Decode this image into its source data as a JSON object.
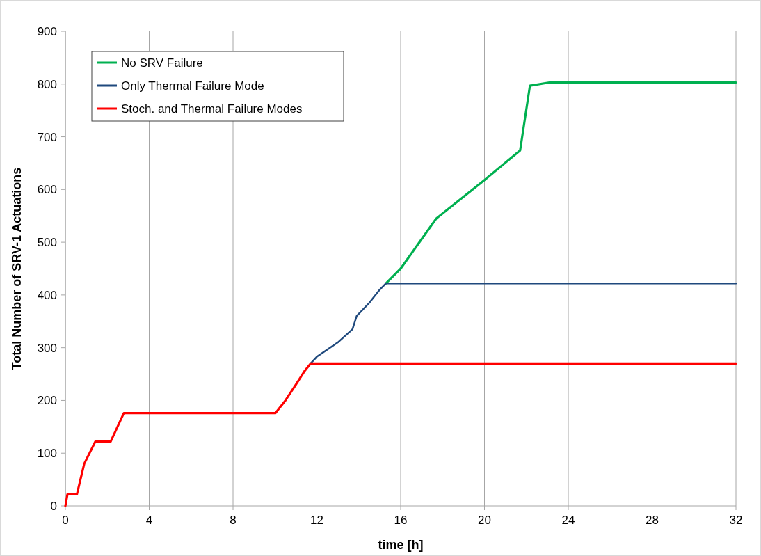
{
  "chart_data": {
    "type": "line",
    "xlabel": "time [h]",
    "ylabel": "Total Number of SRV-1 Actuations",
    "xlim": [
      0,
      32
    ],
    "ylim": [
      0,
      900
    ],
    "xticks": [
      0,
      4,
      8,
      12,
      16,
      20,
      24,
      28,
      32
    ],
    "yticks": [
      0,
      100,
      200,
      300,
      400,
      500,
      600,
      700,
      800,
      900
    ],
    "grid": "x",
    "legend": "top left",
    "line_style": "solid",
    "series": [
      {
        "name": "No SRV Failure",
        "color": "#00b050",
        "x": [
          15.3,
          16,
          17.7,
          20,
          21.7,
          22.17,
          23.1,
          32
        ],
        "values": [
          422,
          450,
          545,
          618,
          674,
          797,
          803,
          803
        ]
      },
      {
        "name": "Only Thermal Failure Mode",
        "color": "#1f497d",
        "x": [
          11.7,
          12,
          13,
          13.7,
          13.9,
          14.5,
          15,
          15.3,
          32
        ],
        "values": [
          270,
          283,
          310,
          335,
          360,
          385,
          410,
          422,
          422
        ]
      },
      {
        "name": "Stoch. and Thermal Failure Modes",
        "color": "#ff0000",
        "x": [
          0,
          0.1,
          0.55,
          0.9,
          1.43,
          2.16,
          2.79,
          10.02,
          10.5,
          11,
          11.4,
          11.7,
          32
        ],
        "values": [
          0,
          22,
          22,
          80,
          122,
          122,
          176,
          176,
          200,
          230,
          255,
          270,
          270
        ]
      }
    ]
  }
}
